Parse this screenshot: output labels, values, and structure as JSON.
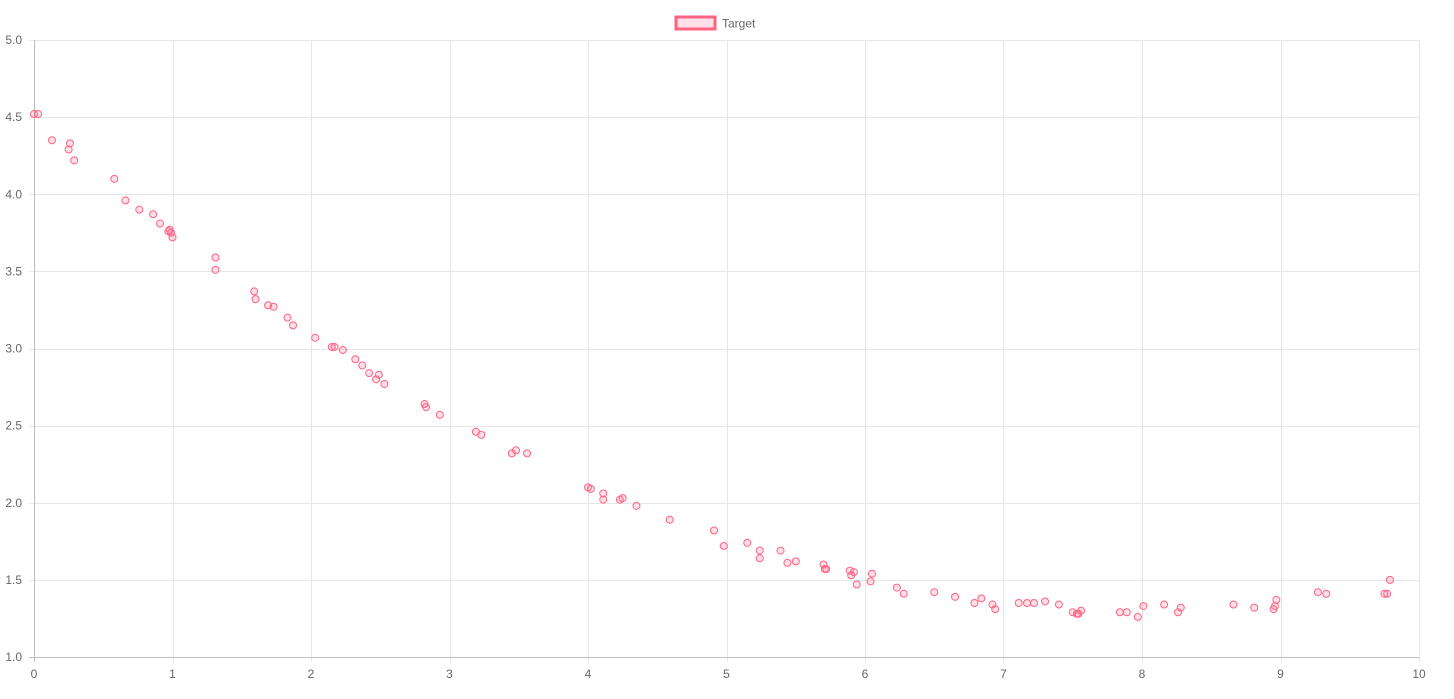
{
  "colors": {
    "series_border": "#ff6384",
    "series_fill": "rgba(255, 99, 132, 0.2)",
    "legend_text": "#666666",
    "tick_text": "#666666"
  },
  "chart_data": {
    "type": "scatter",
    "title": "",
    "xlabel": "",
    "ylabel": "",
    "xlim": [
      0,
      10
    ],
    "ylim": [
      1.0,
      5.0
    ],
    "x_ticks": [
      "0",
      "1",
      "2",
      "3",
      "4",
      "5",
      "6",
      "7",
      "8",
      "9",
      "10"
    ],
    "y_ticks": [
      "1.0",
      "1.5",
      "2.0",
      "2.5",
      "3.0",
      "3.5",
      "4.0",
      "4.5",
      "5.0"
    ],
    "grid": true,
    "legend_position": "top-center",
    "series": [
      {
        "name": "Target",
        "points": [
          {
            "x": 0.0,
            "y": 4.52
          },
          {
            "x": 0.03,
            "y": 4.52
          },
          {
            "x": 0.13,
            "y": 4.35
          },
          {
            "x": 0.25,
            "y": 4.29
          },
          {
            "x": 0.26,
            "y": 4.33
          },
          {
            "x": 0.29,
            "y": 4.22
          },
          {
            "x": 0.58,
            "y": 4.1
          },
          {
            "x": 0.66,
            "y": 3.96
          },
          {
            "x": 0.76,
            "y": 3.9
          },
          {
            "x": 0.86,
            "y": 3.87
          },
          {
            "x": 0.91,
            "y": 3.81
          },
          {
            "x": 0.97,
            "y": 3.76
          },
          {
            "x": 0.98,
            "y": 3.77
          },
          {
            "x": 0.99,
            "y": 3.75
          },
          {
            "x": 1.0,
            "y": 3.72
          },
          {
            "x": 1.31,
            "y": 3.59
          },
          {
            "x": 1.31,
            "y": 3.51
          },
          {
            "x": 1.59,
            "y": 3.37
          },
          {
            "x": 1.6,
            "y": 3.32
          },
          {
            "x": 1.69,
            "y": 3.28
          },
          {
            "x": 1.73,
            "y": 3.27
          },
          {
            "x": 1.83,
            "y": 3.2
          },
          {
            "x": 1.87,
            "y": 3.15
          },
          {
            "x": 2.03,
            "y": 3.07
          },
          {
            "x": 2.15,
            "y": 3.01
          },
          {
            "x": 2.17,
            "y": 3.01
          },
          {
            "x": 2.23,
            "y": 2.99
          },
          {
            "x": 2.32,
            "y": 2.93
          },
          {
            "x": 2.37,
            "y": 2.89
          },
          {
            "x": 2.42,
            "y": 2.84
          },
          {
            "x": 2.47,
            "y": 2.8
          },
          {
            "x": 2.49,
            "y": 2.83
          },
          {
            "x": 2.53,
            "y": 2.77
          },
          {
            "x": 2.82,
            "y": 2.64
          },
          {
            "x": 2.83,
            "y": 2.62
          },
          {
            "x": 2.93,
            "y": 2.57
          },
          {
            "x": 3.19,
            "y": 2.46
          },
          {
            "x": 3.23,
            "y": 2.44
          },
          {
            "x": 3.45,
            "y": 2.32
          },
          {
            "x": 3.48,
            "y": 2.34
          },
          {
            "x": 3.56,
            "y": 2.32
          },
          {
            "x": 4.0,
            "y": 2.1
          },
          {
            "x": 4.02,
            "y": 2.09
          },
          {
            "x": 4.11,
            "y": 2.06
          },
          {
            "x": 4.11,
            "y": 2.02
          },
          {
            "x": 4.23,
            "y": 2.02
          },
          {
            "x": 4.25,
            "y": 2.03
          },
          {
            "x": 4.35,
            "y": 1.98
          },
          {
            "x": 4.59,
            "y": 1.89
          },
          {
            "x": 4.91,
            "y": 1.82
          },
          {
            "x": 4.98,
            "y": 1.72
          },
          {
            "x": 5.15,
            "y": 1.74
          },
          {
            "x": 5.24,
            "y": 1.69
          },
          {
            "x": 5.24,
            "y": 1.64
          },
          {
            "x": 5.39,
            "y": 1.69
          },
          {
            "x": 5.44,
            "y": 1.61
          },
          {
            "x": 5.5,
            "y": 1.62
          },
          {
            "x": 5.7,
            "y": 1.6
          },
          {
            "x": 5.71,
            "y": 1.57
          },
          {
            "x": 5.72,
            "y": 1.57
          },
          {
            "x": 5.89,
            "y": 1.56
          },
          {
            "x": 5.9,
            "y": 1.53
          },
          {
            "x": 5.92,
            "y": 1.55
          },
          {
            "x": 5.94,
            "y": 1.47
          },
          {
            "x": 6.04,
            "y": 1.49
          },
          {
            "x": 6.05,
            "y": 1.54
          },
          {
            "x": 6.23,
            "y": 1.45
          },
          {
            "x": 6.28,
            "y": 1.41
          },
          {
            "x": 6.5,
            "y": 1.42
          },
          {
            "x": 6.65,
            "y": 1.39
          },
          {
            "x": 6.79,
            "y": 1.35
          },
          {
            "x": 6.84,
            "y": 1.38
          },
          {
            "x": 6.92,
            "y": 1.34
          },
          {
            "x": 6.94,
            "y": 1.31
          },
          {
            "x": 7.11,
            "y": 1.35
          },
          {
            "x": 7.17,
            "y": 1.35
          },
          {
            "x": 7.22,
            "y": 1.35
          },
          {
            "x": 7.3,
            "y": 1.36
          },
          {
            "x": 7.4,
            "y": 1.34
          },
          {
            "x": 7.5,
            "y": 1.29
          },
          {
            "x": 7.53,
            "y": 1.28
          },
          {
            "x": 7.54,
            "y": 1.28
          },
          {
            "x": 7.56,
            "y": 1.3
          },
          {
            "x": 7.84,
            "y": 1.29
          },
          {
            "x": 7.89,
            "y": 1.29
          },
          {
            "x": 7.97,
            "y": 1.26
          },
          {
            "x": 8.01,
            "y": 1.33
          },
          {
            "x": 8.16,
            "y": 1.34
          },
          {
            "x": 8.26,
            "y": 1.29
          },
          {
            "x": 8.28,
            "y": 1.32
          },
          {
            "x": 8.66,
            "y": 1.34
          },
          {
            "x": 8.81,
            "y": 1.32
          },
          {
            "x": 8.95,
            "y": 1.31
          },
          {
            "x": 8.96,
            "y": 1.33
          },
          {
            "x": 8.97,
            "y": 1.37
          },
          {
            "x": 9.27,
            "y": 1.42
          },
          {
            "x": 9.33,
            "y": 1.41
          },
          {
            "x": 9.75,
            "y": 1.41
          },
          {
            "x": 9.77,
            "y": 1.41
          },
          {
            "x": 9.79,
            "y": 1.5
          }
        ]
      }
    ]
  }
}
